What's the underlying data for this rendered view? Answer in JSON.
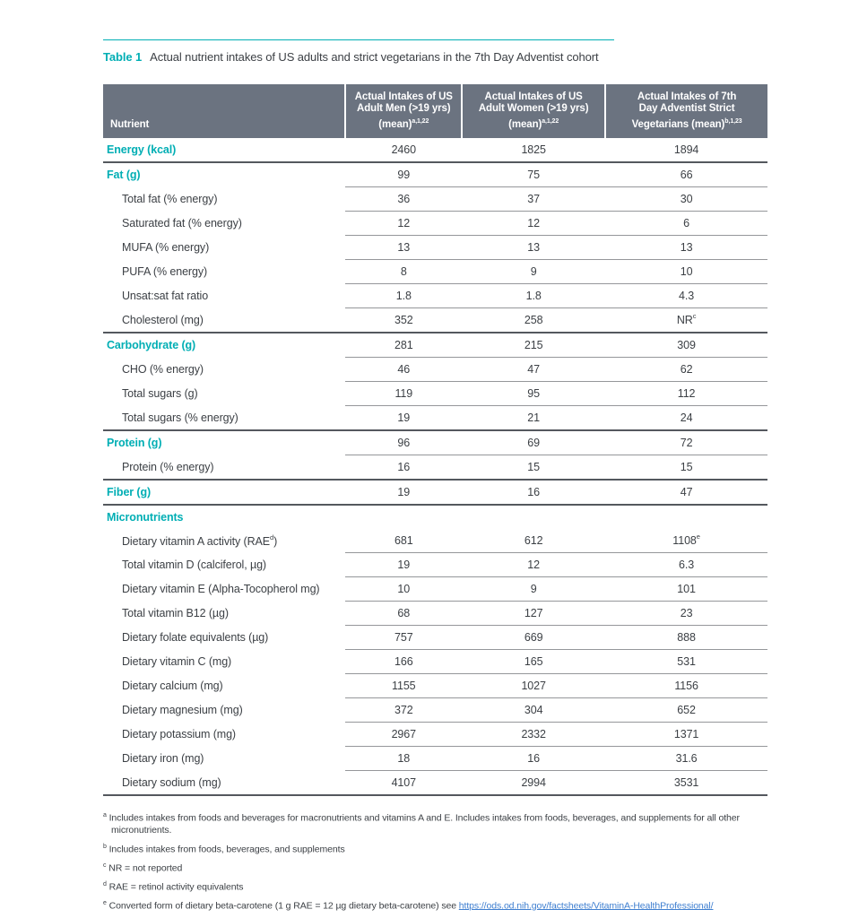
{
  "colors": {
    "teal": "#00aeb4",
    "header_bg": "#6b7380",
    "link": "#3f7fd0",
    "divider_dark": "#54585e",
    "divider_light": "#95979a"
  },
  "title": {
    "label": "Table 1",
    "text": "Actual nutrient intakes of US adults and strict vegetarians in the 7th Day Adventist cohort"
  },
  "table": {
    "columns": [
      {
        "id": "nutrient",
        "lines": [
          "Nutrient"
        ],
        "sup": ""
      },
      {
        "id": "us-adult-men",
        "lines": [
          "Actual Intakes of US",
          "Adult Men (>19 yrs)",
          "(mean)"
        ],
        "sup": "a,1,22"
      },
      {
        "id": "us-adult-women",
        "lines": [
          "Actual Intakes of US",
          "Adult Women (>19 yrs)",
          "(mean)"
        ],
        "sup": "a,1,22"
      },
      {
        "id": "adventist-strict-vegetarians",
        "lines": [
          "Actual Intakes of 7th",
          "Day Adventist Strict",
          "Vegetarians (mean)"
        ],
        "sup": "b,1,23"
      }
    ],
    "rows": [
      {
        "label": "Energy (kcal)",
        "category": true,
        "values": [
          "2460",
          "1825",
          "1894"
        ],
        "divider": "full"
      },
      {
        "label": "Fat (g)",
        "category": true,
        "values": [
          "99",
          "75",
          "66"
        ],
        "divider": "partial"
      },
      {
        "label": "Total fat (% energy)",
        "category": false,
        "values": [
          "36",
          "37",
          "30"
        ],
        "divider": "partial"
      },
      {
        "label": "Saturated fat (% energy)",
        "category": false,
        "values": [
          "12",
          "12",
          "6"
        ],
        "divider": "partial"
      },
      {
        "label": "MUFA (% energy)",
        "category": false,
        "values": [
          "13",
          "13",
          "13"
        ],
        "divider": "partial"
      },
      {
        "label": "PUFA (% energy)",
        "category": false,
        "values": [
          "8",
          "9",
          "10"
        ],
        "divider": "partial"
      },
      {
        "label": "Unsat:sat fat ratio",
        "category": false,
        "values": [
          "1.8",
          "1.8",
          "4.3"
        ],
        "divider": "partial"
      },
      {
        "label": "Cholesterol (mg)",
        "category": false,
        "values": [
          "352",
          "258",
          {
            "v": "NR",
            "sup": "c"
          }
        ],
        "divider": "full"
      },
      {
        "label": "Carbohydrate (g)",
        "category": true,
        "values": [
          "281",
          "215",
          "309"
        ],
        "divider": "partial"
      },
      {
        "label": "CHO (% energy)",
        "category": false,
        "values": [
          "46",
          "47",
          "62"
        ],
        "divider": "partial"
      },
      {
        "label": "Total sugars (g)",
        "category": false,
        "values": [
          "119",
          "95",
          "112"
        ],
        "divider": "partial"
      },
      {
        "label": "Total sugars (% energy)",
        "category": false,
        "values": [
          "19",
          "21",
          "24"
        ],
        "divider": "full"
      },
      {
        "label": "Protein (g)",
        "category": true,
        "values": [
          "96",
          "69",
          "72"
        ],
        "divider": "partial"
      },
      {
        "label": "Protein (% energy)",
        "category": false,
        "values": [
          "16",
          "15",
          "15"
        ],
        "divider": "full"
      },
      {
        "label": "Fiber (g)",
        "category": true,
        "values": [
          "19",
          "16",
          "47"
        ],
        "divider": "full"
      },
      {
        "label": "Micronutrients",
        "category": true,
        "values": [
          "",
          "",
          ""
        ],
        "divider": "none"
      },
      {
        "label": "Dietary vitamin A activity (RAE",
        "label_sup": "d",
        "label_end": ")",
        "category": false,
        "values": [
          "681",
          "612",
          {
            "v": "1108",
            "sup": "e"
          }
        ],
        "divider": "partial"
      },
      {
        "label": "Total vitamin D (calciferol, µg)",
        "category": false,
        "values": [
          "19",
          "12",
          "6.3"
        ],
        "divider": "partial"
      },
      {
        "label": "Dietary vitamin E (Alpha-Tocopherol mg)",
        "category": false,
        "values": [
          "10",
          "9",
          "101"
        ],
        "divider": "partial"
      },
      {
        "label": "Total vitamin B12 (µg)",
        "category": false,
        "values": [
          "68",
          "127",
          "23"
        ],
        "divider": "partial"
      },
      {
        "label": "Dietary folate equivalents (µg)",
        "category": false,
        "values": [
          "757",
          "669",
          "888"
        ],
        "divider": "partial"
      },
      {
        "label": "Dietary vitamin C (mg)",
        "category": false,
        "values": [
          "166",
          "165",
          "531"
        ],
        "divider": "partial"
      },
      {
        "label": "Dietary calcium (mg)",
        "category": false,
        "values": [
          "1155",
          "1027",
          "1156"
        ],
        "divider": "partial"
      },
      {
        "label": "Dietary magnesium (mg)",
        "category": false,
        "values": [
          "372",
          "304",
          "652"
        ],
        "divider": "partial"
      },
      {
        "label": "Dietary potassium (mg)",
        "category": false,
        "values": [
          "2967",
          "2332",
          "1371"
        ],
        "divider": "partial"
      },
      {
        "label": "Dietary iron (mg)",
        "category": false,
        "values": [
          "18",
          "16",
          "31.6"
        ],
        "divider": "partial"
      },
      {
        "label": "Dietary sodium (mg)",
        "category": false,
        "values": [
          "4107",
          "2994",
          "3531"
        ],
        "divider": "bottom"
      }
    ]
  },
  "footnotes": [
    {
      "marker": "a",
      "text": "Includes intakes from foods and beverages for macronutrients and vitamins A and E. Includes intakes from foods, beverages, and supplements for all other micronutrients."
    },
    {
      "marker": "b",
      "text": "Includes intakes from foods, beverages, and supplements"
    },
    {
      "marker": "c",
      "text": "NR = not reported"
    },
    {
      "marker": "d",
      "text": "RAE = retinol activity equivalents"
    },
    {
      "marker": "e",
      "text": "Converted form of dietary beta-carotene (1 g RAE = 12 µg dietary beta-carotene) see ",
      "link": "https://ods.od.nih.gov/factsheets/VitaminA-HealthProfessional/"
    }
  ]
}
